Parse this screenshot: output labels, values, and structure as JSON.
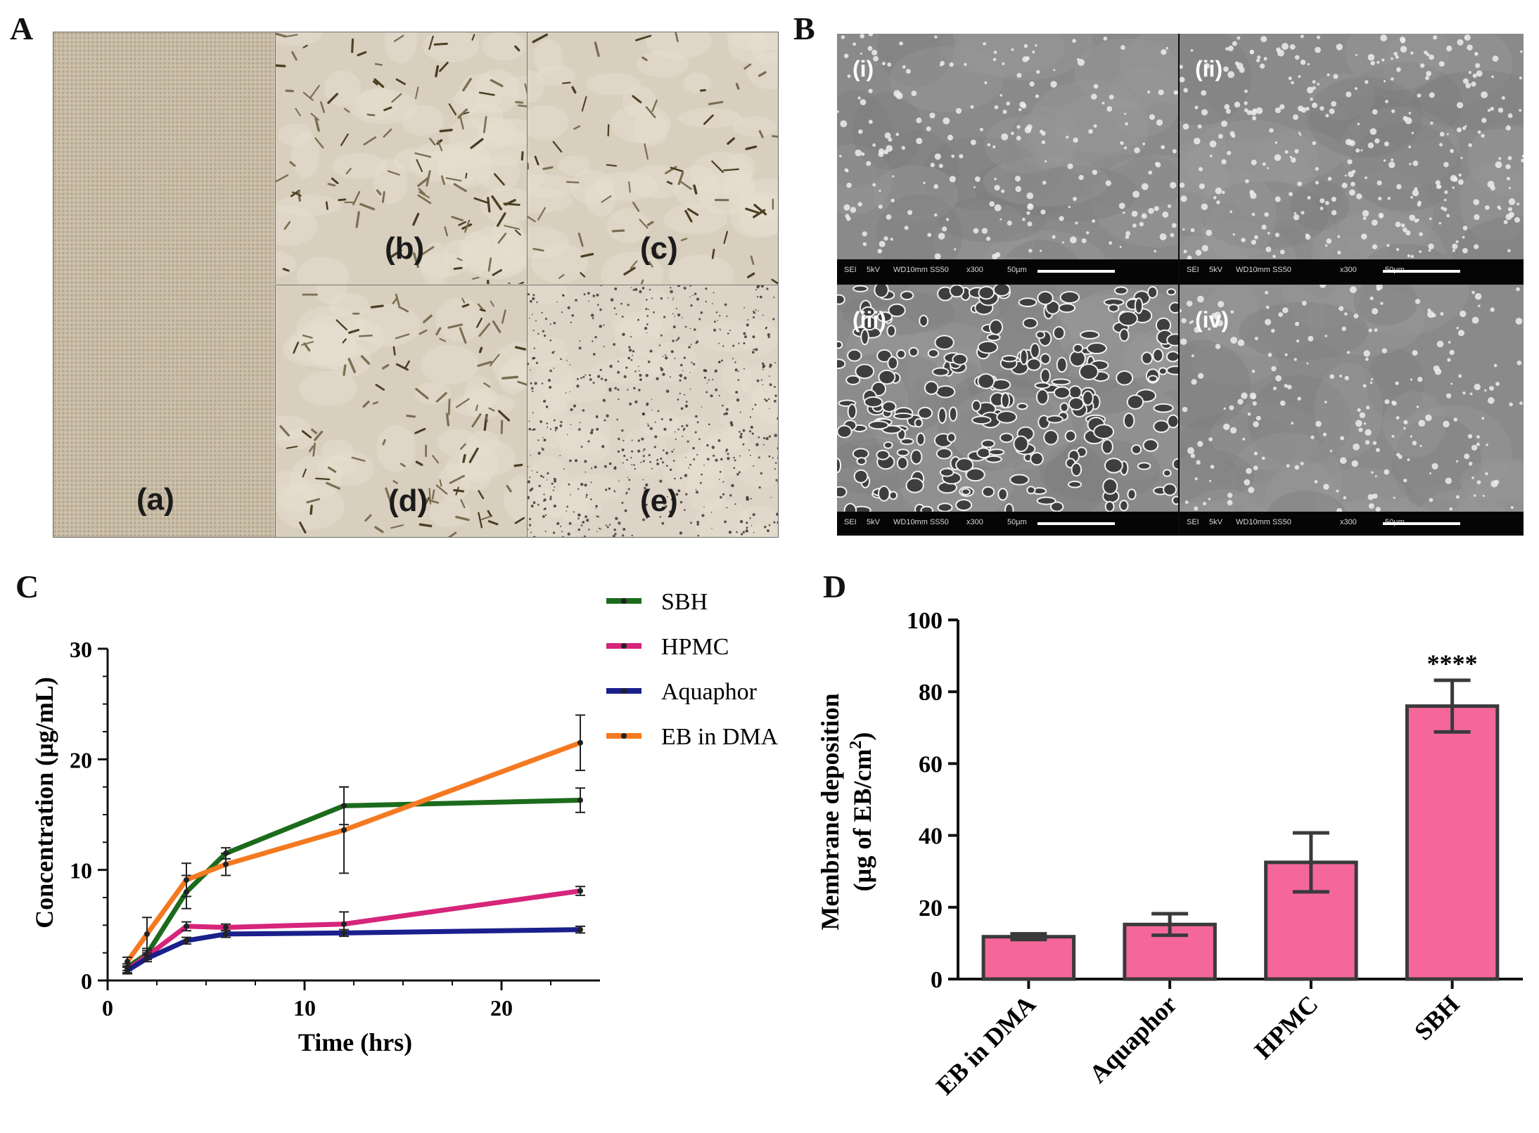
{
  "panels": {
    "A": {
      "letter": "A",
      "cells": [
        {
          "label": "(a)",
          "texture": "dense"
        },
        {
          "label": "(b)",
          "texture": "crystals"
        },
        {
          "label": "(c)",
          "texture": "crystals-sparse"
        },
        {
          "label": "(d)",
          "texture": "crystals"
        },
        {
          "label": "(e)",
          "texture": "dots"
        }
      ]
    },
    "B": {
      "letter": "B",
      "cells": [
        {
          "label": "(i)",
          "info": {
            "mode": "SEI",
            "kv": "5kV",
            "wd": "WD10mm SS50",
            "mag": "x300",
            "scale": "50µm"
          }
        },
        {
          "label": "(ii)",
          "info": {
            "mode": "SEI",
            "kv": "5kV",
            "wd": "WD10mm SS50",
            "mag": "x300",
            "scale": "50µm"
          }
        },
        {
          "label": "(iii)",
          "info": {
            "mode": "SEI",
            "kv": "5kV",
            "wd": "WD10mm SS50",
            "mag": "x300",
            "scale": "50µm"
          }
        },
        {
          "label": "(iv)",
          "info": {
            "mode": "SEI",
            "kv": "5kV",
            "wd": "WD10mm SS50",
            "mag": "x300",
            "scale": "50µm"
          }
        }
      ]
    },
    "C": {
      "letter": "C"
    },
    "D": {
      "letter": "D"
    }
  },
  "chart_data": [
    {
      "type": "line",
      "panel": "C",
      "xlabel": "Time (hrs)",
      "ylabel": "Concentration (µg/mL)",
      "xlim": [
        0,
        25
      ],
      "ylim": [
        0,
        30
      ],
      "xticks": [
        0,
        10,
        20
      ],
      "yticks": [
        0,
        10,
        20,
        30
      ],
      "legend_position": "top-right",
      "series": [
        {
          "name": "SBH",
          "color": "#1c6b1c",
          "marker": "circle",
          "x": [
            1,
            2,
            4,
            6,
            12,
            24
          ],
          "y": [
            1.2,
            2.4,
            8.0,
            11.5,
            15.8,
            16.3
          ],
          "err": [
            0.3,
            0.5,
            1.5,
            0.5,
            1.7,
            1.1
          ]
        },
        {
          "name": "HPMC",
          "color": "#d6257a",
          "marker": "square",
          "x": [
            1,
            2,
            4,
            6,
            12,
            24
          ],
          "y": [
            1.0,
            2.2,
            4.9,
            4.8,
            5.1,
            8.1
          ],
          "err": [
            0.3,
            0.3,
            0.4,
            0.3,
            1.1,
            0.4
          ]
        },
        {
          "name": "Aquaphor",
          "color": "#1a1f8c",
          "marker": "triangle",
          "x": [
            1,
            2,
            4,
            6,
            12,
            24
          ],
          "y": [
            0.9,
            2.0,
            3.6,
            4.2,
            4.3,
            4.6
          ],
          "err": [
            0.3,
            0.3,
            0.3,
            0.3,
            0.3,
            0.3
          ]
        },
        {
          "name": "EB in DMA",
          "color": "#f47920",
          "marker": "triangle-down",
          "x": [
            1,
            2,
            4,
            6,
            12,
            24
          ],
          "y": [
            1.7,
            4.2,
            9.1,
            10.5,
            13.6,
            21.5
          ],
          "err": [
            0.4,
            1.5,
            1.5,
            1.0,
            3.9,
            2.5
          ]
        }
      ]
    },
    {
      "type": "bar",
      "panel": "D",
      "ylabel_line1": "Membrane deposition",
      "ylabel_line2": "(µg of EB/cm",
      "ylabel_sup": "2",
      "ylabel_end": ")",
      "categories": [
        "EB in DMA",
        "Aquaphor",
        "HPMC",
        "SBH"
      ],
      "values": [
        11.8,
        15.2,
        32.5,
        76.0
      ],
      "errors": [
        0.8,
        3.0,
        8.2,
        7.2
      ],
      "annotations": [
        "",
        "",
        "",
        "****"
      ],
      "ylim": [
        0,
        100
      ],
      "yticks": [
        0,
        20,
        40,
        60,
        80,
        100
      ],
      "bar_color": "#f5679a",
      "edge_color": "#3a3a3a"
    }
  ]
}
